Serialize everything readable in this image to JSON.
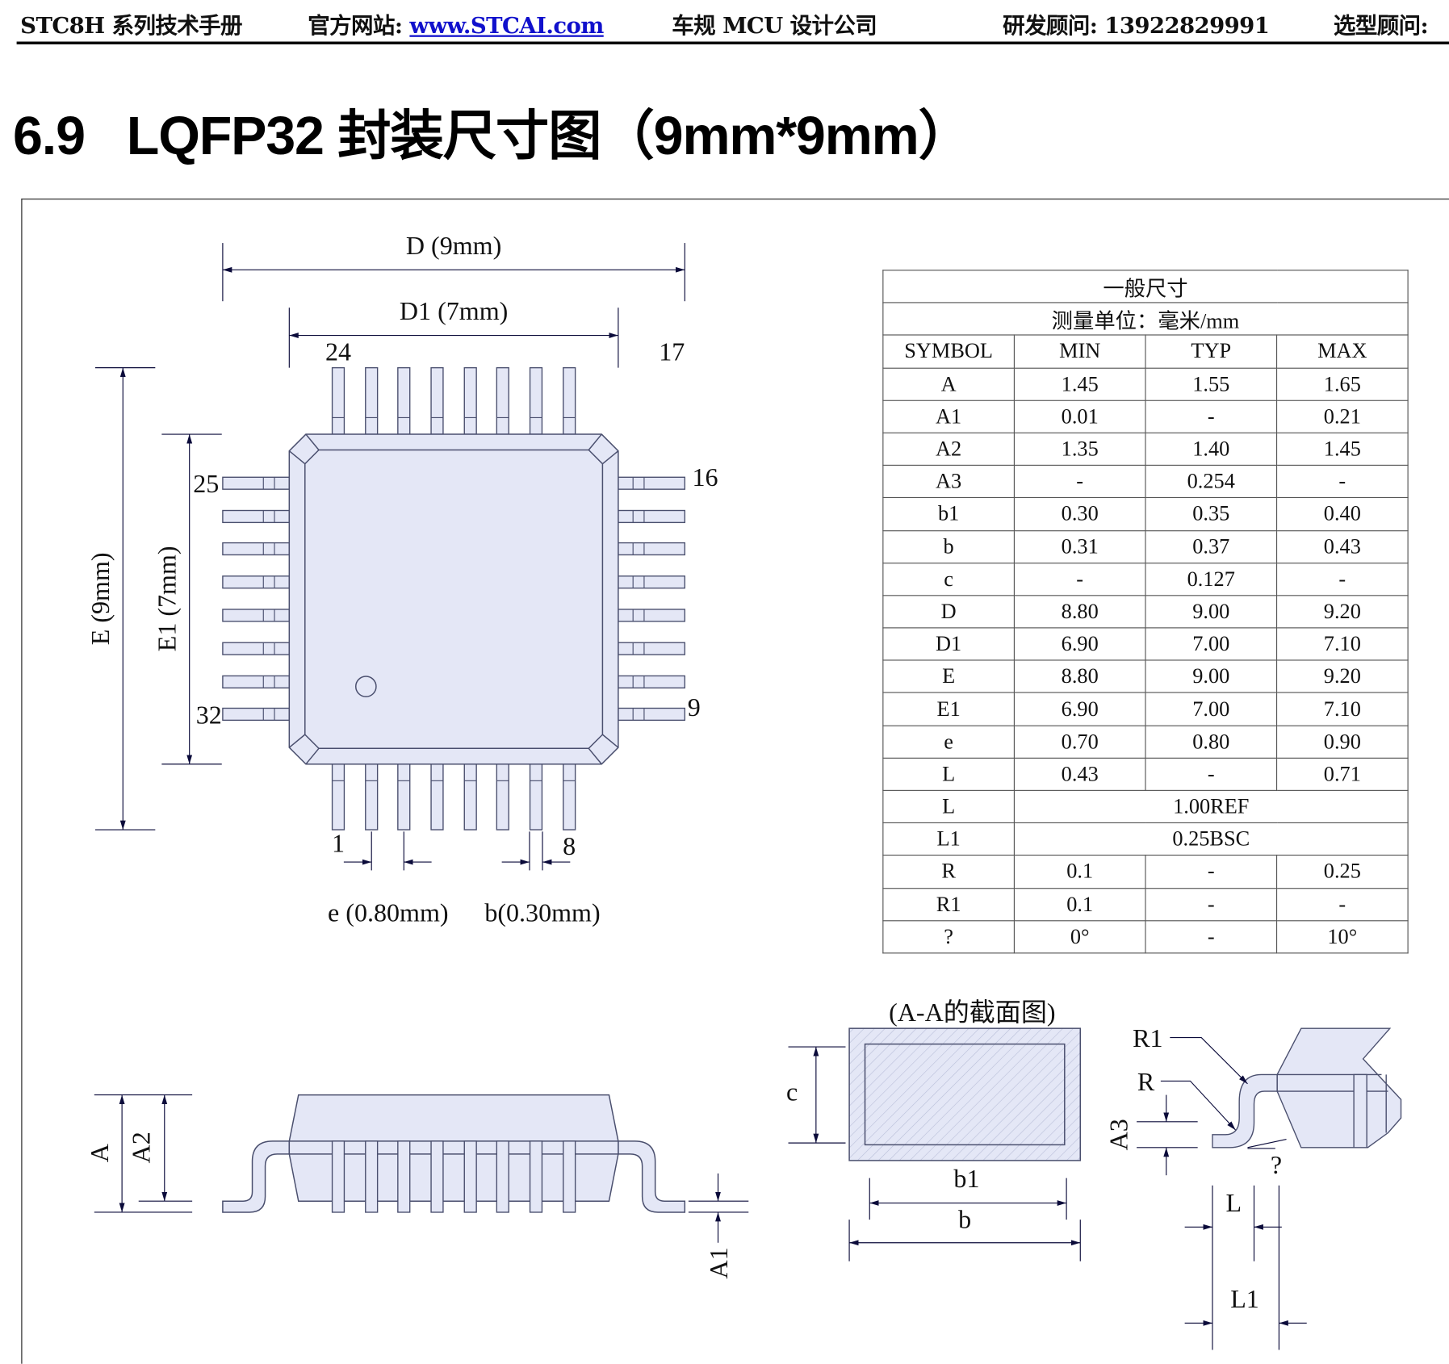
{
  "header": {
    "manual": "STC8H 系列技术手册",
    "website_label": "官方网站: ",
    "website_link": "www.STCAI.com",
    "slogan": "车规 MCU 设计公司",
    "rd_advisor": "研发顾问: 13922829991",
    "selection_advisor": "选型顾问:"
  },
  "section_title": "6.9   LQFP32 封装尺寸图（9mm*9mm）",
  "drawing": {
    "colors": {
      "body_fill": "#e4e7f6",
      "outline": "#4a4f6e",
      "dim_line": "#0b0b3a"
    },
    "top_view": {
      "D_label": "D (9mm)",
      "D1_label": "D1 (7mm)",
      "E_label": "E (9mm)",
      "E1_label": "E1 (7mm)",
      "pin_24": "24",
      "pin_17": "17",
      "pin_25": "25",
      "pin_16": "16",
      "pin_32": "32",
      "pin_9": "9",
      "pin_1": "1",
      "pin_8": "8",
      "e_label": "e (0.80mm)",
      "b_label": "b(0.30mm)"
    },
    "side_view": {
      "A_label": "A",
      "A2_label": "A2",
      "A1_label": "A1"
    },
    "section_view": {
      "title": "(A-A的截面图)",
      "c_label": "c",
      "b1_label": "b1",
      "b_label": "b"
    },
    "lead_detail": {
      "R1_label": "R1",
      "R_label": "R",
      "A3_label": "A3",
      "angle_label": "?",
      "L_label": "L",
      "L1_label": "L1"
    }
  },
  "table": {
    "title": "一般尺寸",
    "unit": "测量单位：毫米/mm",
    "columns": [
      "SYMBOL",
      "MIN",
      "TYP",
      "MAX"
    ],
    "rows": [
      [
        "A",
        "1.45",
        "1.55",
        "1.65"
      ],
      [
        "A1",
        "0.01",
        "-",
        "0.21"
      ],
      [
        "A2",
        "1.35",
        "1.40",
        "1.45"
      ],
      [
        "A3",
        "-",
        "0.254",
        "-"
      ],
      [
        "b1",
        "0.30",
        "0.35",
        "0.40"
      ],
      [
        "b",
        "0.31",
        "0.37",
        "0.43"
      ],
      [
        "c",
        "-",
        "0.127",
        "-"
      ],
      [
        "D",
        "8.80",
        "9.00",
        "9.20"
      ],
      [
        "D1",
        "6.90",
        "7.00",
        "7.10"
      ],
      [
        "E",
        "8.80",
        "9.00",
        "9.20"
      ],
      [
        "E1",
        "6.90",
        "7.00",
        "7.10"
      ],
      [
        "e",
        "0.70",
        "0.80",
        "0.90"
      ],
      [
        "L",
        "0.43",
        "-",
        "0.71"
      ],
      [
        "L",
        "1.00REF"
      ],
      [
        "L1",
        "0.25BSC"
      ],
      [
        "R",
        "0.1",
        "-",
        "0.25"
      ],
      [
        "R1",
        "0.1",
        "-",
        "-"
      ],
      [
        "?",
        "0°",
        "-",
        "10°"
      ]
    ]
  }
}
